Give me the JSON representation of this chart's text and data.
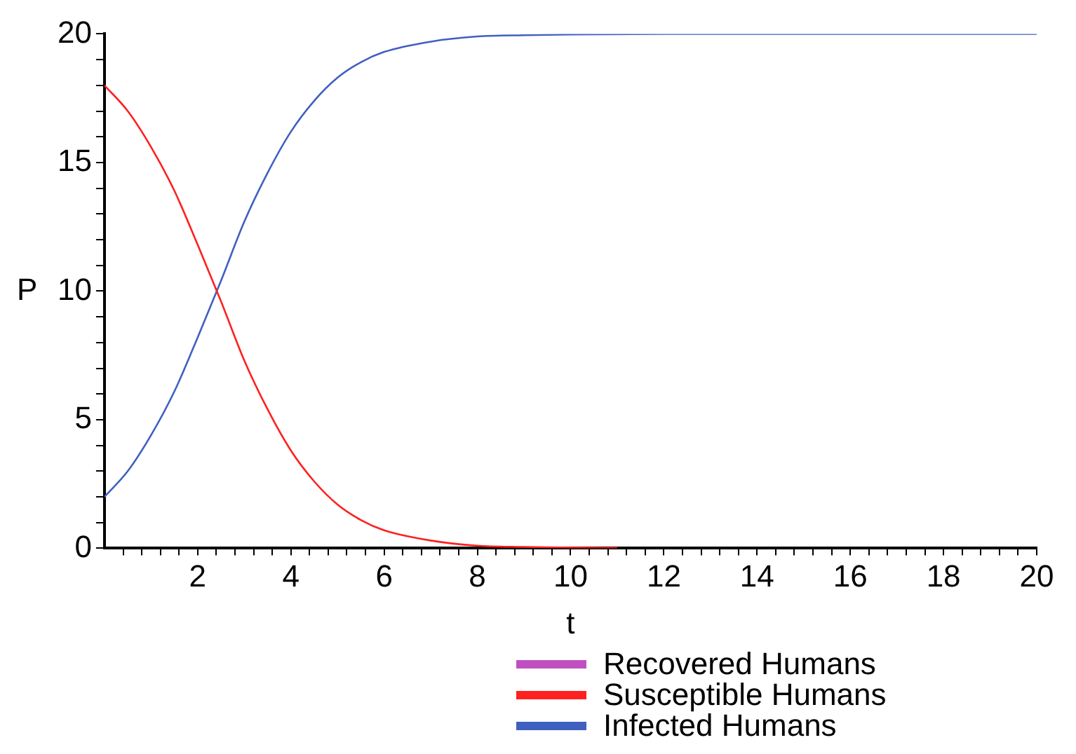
{
  "chart_data": {
    "type": "line",
    "xlabel": "t",
    "ylabel": "P",
    "xlim": [
      0,
      20
    ],
    "ylim": [
      0,
      20
    ],
    "xticks": [
      {
        "value": 0.4,
        "label": null
      },
      {
        "value": 0.8,
        "label": null
      },
      {
        "value": 1.2,
        "label": null
      },
      {
        "value": 1.6,
        "label": null
      },
      2,
      {
        "value": 2.4,
        "label": null
      },
      {
        "value": 2.8,
        "label": null
      },
      {
        "value": 3.2,
        "label": null
      },
      {
        "value": 3.6,
        "label": null
      },
      4,
      {
        "value": 4.4,
        "label": null
      },
      {
        "value": 4.8,
        "label": null
      },
      {
        "value": 5.2,
        "label": null
      },
      {
        "value": 5.6,
        "label": null
      },
      6,
      {
        "value": 6.4,
        "label": null
      },
      {
        "value": 6.8,
        "label": null
      },
      {
        "value": 7.2,
        "label": null
      },
      {
        "value": 7.6,
        "label": null
      },
      8,
      {
        "value": 8.4,
        "label": null
      },
      {
        "value": 8.8,
        "label": null
      },
      {
        "value": 9.2,
        "label": null
      },
      {
        "value": 9.6,
        "label": null
      },
      10,
      {
        "value": 10.4,
        "label": null
      },
      {
        "value": 10.8,
        "label": null
      },
      {
        "value": 11.2,
        "label": null
      },
      {
        "value": 11.6,
        "label": null
      },
      12,
      {
        "value": 12.4,
        "label": null
      },
      {
        "value": 12.8,
        "label": null
      },
      {
        "value": 13.2,
        "label": null
      },
      {
        "value": 13.6,
        "label": null
      },
      14,
      {
        "value": 14.4,
        "label": null
      },
      {
        "value": 14.8,
        "label": null
      },
      {
        "value": 15.2,
        "label": null
      },
      {
        "value": 15.6,
        "label": null
      },
      16,
      {
        "value": 16.4,
        "label": null
      },
      {
        "value": 16.8,
        "label": null
      },
      {
        "value": 17.2,
        "label": null
      },
      {
        "value": 17.6,
        "label": null
      },
      18,
      {
        "value": 18.4,
        "label": null
      },
      {
        "value": 18.8,
        "label": null
      },
      {
        "value": 19.2,
        "label": null
      },
      {
        "value": 19.6,
        "label": null
      },
      20
    ],
    "yticks": [
      0,
      {
        "value": 1,
        "label": null
      },
      {
        "value": 2,
        "label": null
      },
      {
        "value": 3,
        "label": null
      },
      {
        "value": 4,
        "label": null
      },
      5,
      {
        "value": 6,
        "label": null
      },
      {
        "value": 7,
        "label": null
      },
      {
        "value": 8,
        "label": null
      },
      {
        "value": 9,
        "label": null
      },
      10,
      {
        "value": 11,
        "label": null
      },
      {
        "value": 12,
        "label": null
      },
      {
        "value": 13,
        "label": null
      },
      {
        "value": 14,
        "label": null
      },
      15,
      {
        "value": 16,
        "label": null
      },
      {
        "value": 17,
        "label": null
      },
      {
        "value": 18,
        "label": null
      },
      {
        "value": 19,
        "label": null
      },
      20
    ],
    "grid": false,
    "legend": "bottom",
    "marker": "none",
    "line_style": "solid",
    "series": [
      {
        "name": "Recovered Humans",
        "color": "#c050c0"
      },
      {
        "name": "Susceptible Humans",
        "color": "#ff2020",
        "x": [
          0,
          0.5,
          1,
          1.5,
          2,
          2.5,
          3,
          3.5,
          4,
          4.5,
          5,
          5.5,
          6,
          7,
          8,
          9,
          10,
          11
        ],
        "values": [
          18,
          17,
          15.6,
          13.9,
          11.8,
          9.6,
          7.3,
          5.4,
          3.8,
          2.6,
          1.7,
          1.1,
          0.7,
          0.3,
          0.1,
          0.05,
          0.02,
          0.01
        ]
      },
      {
        "name": "Infected Humans",
        "color": "#4060c0",
        "x": [
          0,
          0.5,
          1,
          1.5,
          2,
          2.5,
          3,
          3.5,
          4,
          4.5,
          5,
          5.5,
          6,
          7,
          8,
          9,
          10,
          12,
          14,
          16,
          18,
          20
        ],
        "values": [
          2,
          3,
          4.4,
          6.1,
          8.2,
          10.4,
          12.7,
          14.6,
          16.2,
          17.4,
          18.3,
          18.9,
          19.3,
          19.7,
          19.9,
          19.95,
          19.98,
          20,
          20,
          20,
          20,
          20
        ]
      }
    ]
  }
}
